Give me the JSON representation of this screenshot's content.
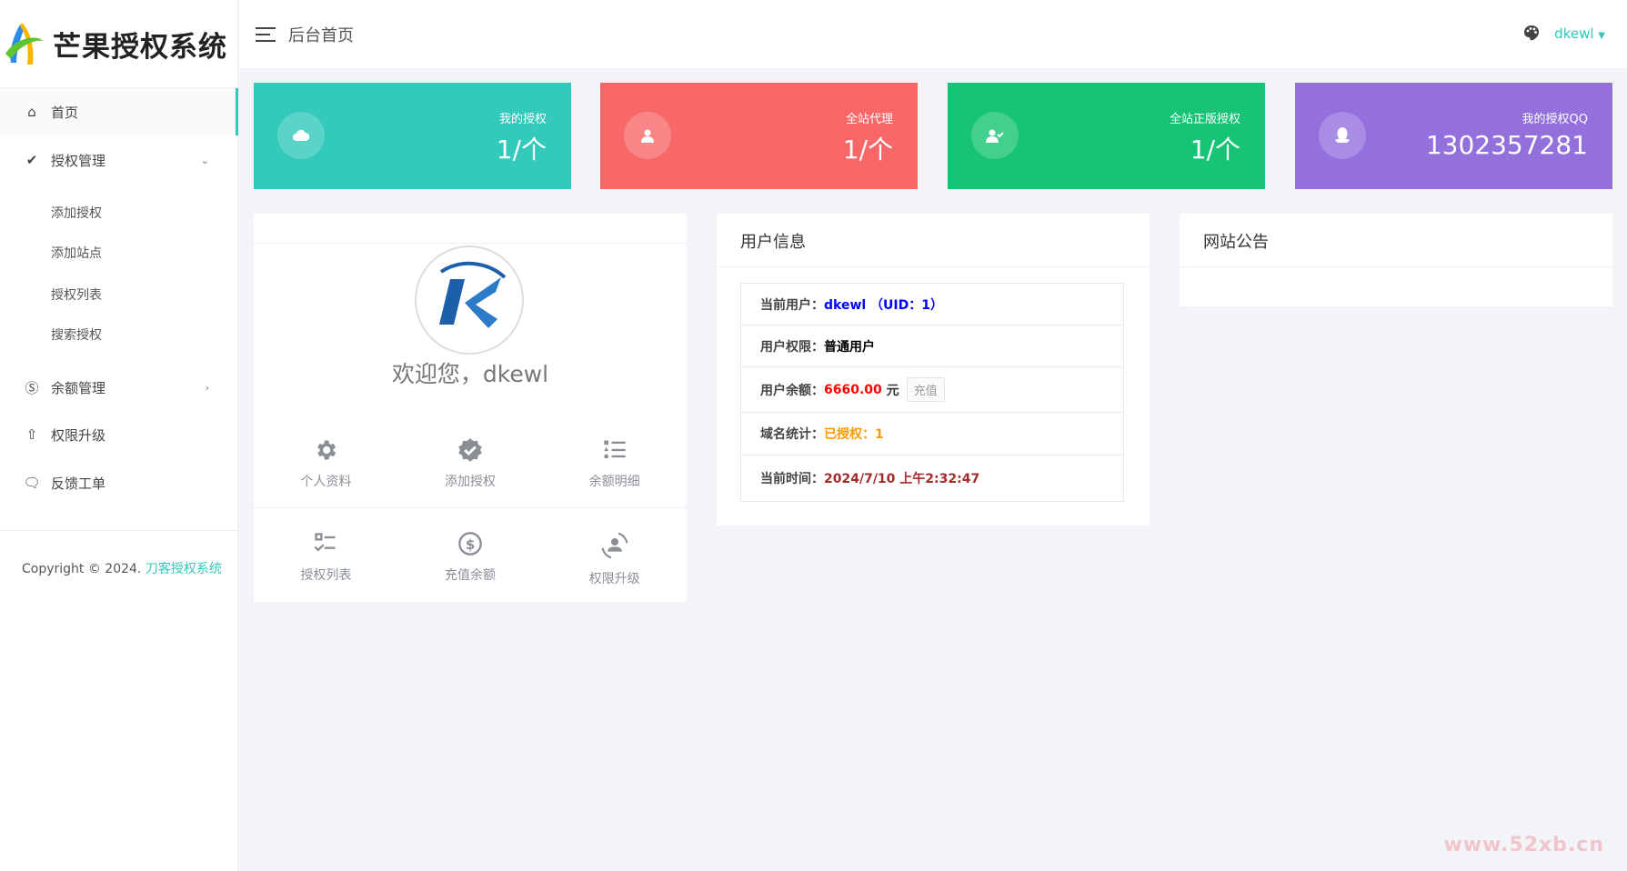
{
  "app": {
    "logo_text": "芒果授权系统"
  },
  "sidebar": {
    "items": [
      {
        "label": "首页",
        "icon": "home-icon",
        "active": true
      },
      {
        "label": "授权管理",
        "icon": "badge-check-icon",
        "expanded": true,
        "children": [
          "添加授权",
          "添加站点",
          "授权列表",
          "搜索授权"
        ]
      },
      {
        "label": "余额管理",
        "icon": "skype-s-icon"
      },
      {
        "label": "权限升级",
        "icon": "arrow-up-icon"
      },
      {
        "label": "反馈工单",
        "icon": "comments-icon"
      }
    ],
    "copyright": "Copyright © 2024.",
    "copyright_link": "刀客授权系统"
  },
  "header": {
    "title": "后台首页",
    "user": "dkewl"
  },
  "stats": [
    {
      "label": "我的授权",
      "value": "1/个",
      "color": "#33c9bb",
      "icon": "cloud-icon"
    },
    {
      "label": "全站代理",
      "value": "1/个",
      "color": "#f86869",
      "icon": "user-icon"
    },
    {
      "label": "全站正版授权",
      "value": "1/个",
      "color": "#17c374",
      "icon": "user-check-icon"
    },
    {
      "label": "我的授权QQ",
      "value": "1302357281",
      "color": "#9470dd",
      "icon": "qq-icon"
    }
  ],
  "profile": {
    "welcome": "欢迎您，dkewl",
    "shortcuts": [
      {
        "label": "个人资料",
        "icon": "gear-icon"
      },
      {
        "label": "添加授权",
        "icon": "badge-check-icon"
      },
      {
        "label": "余额明细",
        "icon": "list-icon"
      },
      {
        "label": "授权列表",
        "icon": "checklist-icon"
      },
      {
        "label": "充值余额",
        "icon": "dollar-circle-icon"
      },
      {
        "label": "权限升级",
        "icon": "user-sync-icon"
      }
    ]
  },
  "user_info": {
    "title": "用户信息",
    "rows": [
      {
        "key": "当前用户：",
        "value": "dkewl （UID：1）",
        "color": "#0000ff"
      },
      {
        "key": "用户权限：",
        "value": "普通用户",
        "color": "#000000"
      },
      {
        "key": "用户余额：",
        "value": "6660.00",
        "unit": "元",
        "button": "充值",
        "color": "#ff0000"
      },
      {
        "key": "域名统计：",
        "value": "已授权：1",
        "color": "#ff9900"
      },
      {
        "key": "当前时间：",
        "value": "2024/7/10 上午2:32:47",
        "color": "#a52a2a"
      }
    ]
  },
  "notice": {
    "title": "网站公告"
  },
  "watermark": "www.52xb.cn"
}
